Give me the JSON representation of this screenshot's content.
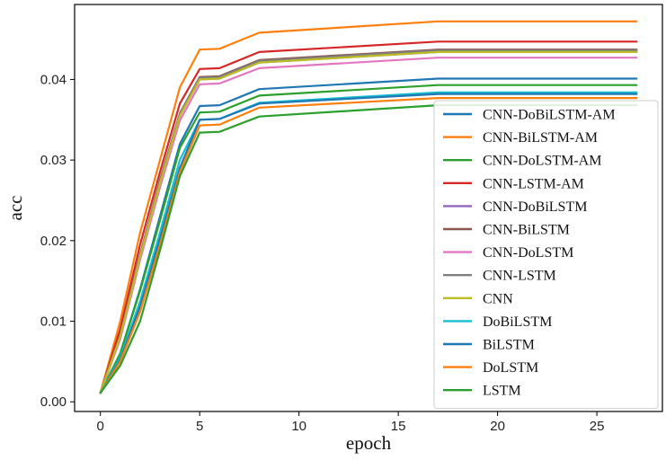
{
  "chart_data": {
    "type": "line",
    "xlabel": "epoch",
    "ylabel": "acc",
    "xlim": [
      -1.3,
      28.3
    ],
    "ylim": [
      -0.0012,
      0.0493
    ],
    "xticks": [
      0,
      5,
      10,
      15,
      20,
      25
    ],
    "yticks": [
      0.0,
      0.01,
      0.02,
      0.03,
      0.04
    ],
    "ytick_labels": [
      "0.00",
      "0.01",
      "0.02",
      "0.03",
      "0.04"
    ],
    "grid": false,
    "legend_position": "lower-right",
    "x": [
      0,
      1,
      2,
      3,
      4,
      5,
      6,
      8,
      17,
      27
    ],
    "series": [
      {
        "name": "CNN-DoBiLSTM-AM",
        "color": "#1f77b4",
        "values": [
          0.0011,
          0.006,
          0.014,
          0.023,
          0.032,
          0.0367,
          0.0368,
          0.0388,
          0.0401,
          0.0401
        ]
      },
      {
        "name": "CNN-BiLSTM-AM",
        "color": "#ff7f0e",
        "values": [
          0.0011,
          0.01,
          0.021,
          0.03,
          0.039,
          0.0437,
          0.0438,
          0.0458,
          0.0472,
          0.0472
        ]
      },
      {
        "name": "CNN-DoLSTM-AM",
        "color": "#2ca02c",
        "values": [
          0.0011,
          0.006,
          0.0138,
          0.0225,
          0.0315,
          0.0359,
          0.036,
          0.038,
          0.0393,
          0.0393
        ]
      },
      {
        "name": "CNN-LSTM-AM",
        "color": "#d62728",
        "values": [
          0.0011,
          0.009,
          0.0195,
          0.0285,
          0.037,
          0.0413,
          0.0414,
          0.0434,
          0.0447,
          0.0447
        ]
      },
      {
        "name": "CNN-DoBiLSTM",
        "color": "#9467bd",
        "values": [
          0.0011,
          0.008,
          0.018,
          0.0272,
          0.0355,
          0.04,
          0.0401,
          0.0421,
          0.0434,
          0.0434
        ]
      },
      {
        "name": "CNN-BiLSTM",
        "color": "#8c564b",
        "values": [
          0.0011,
          0.0083,
          0.0183,
          0.0275,
          0.0358,
          0.0403,
          0.0404,
          0.0424,
          0.0437,
          0.0437
        ]
      },
      {
        "name": "CNN-DoLSTM",
        "color": "#e377c2",
        "values": [
          0.0011,
          0.0078,
          0.0176,
          0.0266,
          0.0349,
          0.0394,
          0.0395,
          0.0414,
          0.0427,
          0.0427
        ]
      },
      {
        "name": "CNN-LSTM",
        "color": "#7f7f7f",
        "values": [
          0.0011,
          0.0082,
          0.0182,
          0.0273,
          0.0357,
          0.0402,
          0.0403,
          0.0423,
          0.0436,
          0.0436
        ]
      },
      {
        "name": "CNN",
        "color": "#bcbd22",
        "values": [
          0.0011,
          0.0081,
          0.018,
          0.0271,
          0.0355,
          0.04,
          0.0401,
          0.0421,
          0.0434,
          0.0434
        ]
      },
      {
        "name": "DoBiLSTM",
        "color": "#17becf",
        "values": [
          0.0011,
          0.0055,
          0.0125,
          0.021,
          0.03,
          0.035,
          0.0351,
          0.0371,
          0.0384,
          0.0384
        ]
      },
      {
        "name": "BiLSTM",
        "color": "#1f77b4",
        "values": [
          0.0011,
          0.0052,
          0.0118,
          0.0202,
          0.029,
          0.035,
          0.0351,
          0.037,
          0.0382,
          0.0382
        ]
      },
      {
        "name": "DoLSTM",
        "color": "#ff7f0e",
        "values": [
          0.0011,
          0.005,
          0.0112,
          0.0195,
          0.0285,
          0.0343,
          0.0344,
          0.0365,
          0.0377,
          0.0377
        ]
      },
      {
        "name": "LSTM",
        "color": "#2ca02c",
        "values": [
          0.0011,
          0.0045,
          0.01,
          0.0188,
          0.028,
          0.0334,
          0.0335,
          0.0354,
          0.0368,
          0.0368
        ]
      }
    ]
  }
}
